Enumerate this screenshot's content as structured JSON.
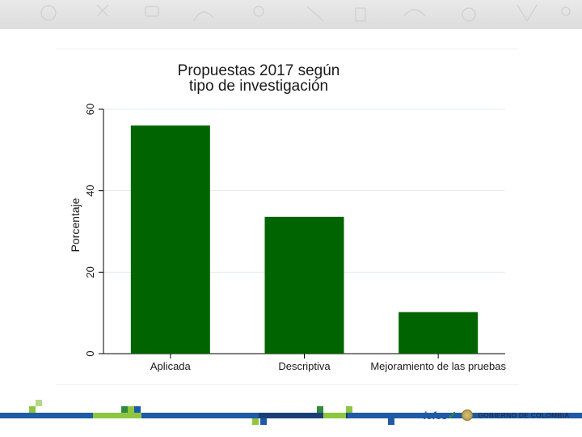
{
  "chart_data": {
    "type": "bar",
    "title_lines": [
      "Propuestas 2017 según",
      "tipo de investigación"
    ],
    "categories": [
      "Aplicada",
      "Descriptiva",
      "Mejoramiento de las pruebas"
    ],
    "values": [
      56,
      33.6,
      10.2
    ],
    "xlabel": "",
    "ylabel": "Porcentaje",
    "ylim": [
      0,
      60
    ],
    "yticks": [
      "0",
      "20",
      "40",
      "60"
    ],
    "grid": true,
    "colors": {
      "bar": "#006400",
      "grid": "#dfeee9",
      "axis": "#000000"
    }
  },
  "footer": {
    "logo_icfes": "icfes",
    "logo_gobierno": "GOBIERNO DE COLOMBIA"
  },
  "colors": {
    "banner_bg": "#e0e0e0",
    "stripe_blue": "#1f5aa6",
    "stripe_green": "#8dc63f",
    "stripe_darkgreen": "#2e8b3d"
  }
}
